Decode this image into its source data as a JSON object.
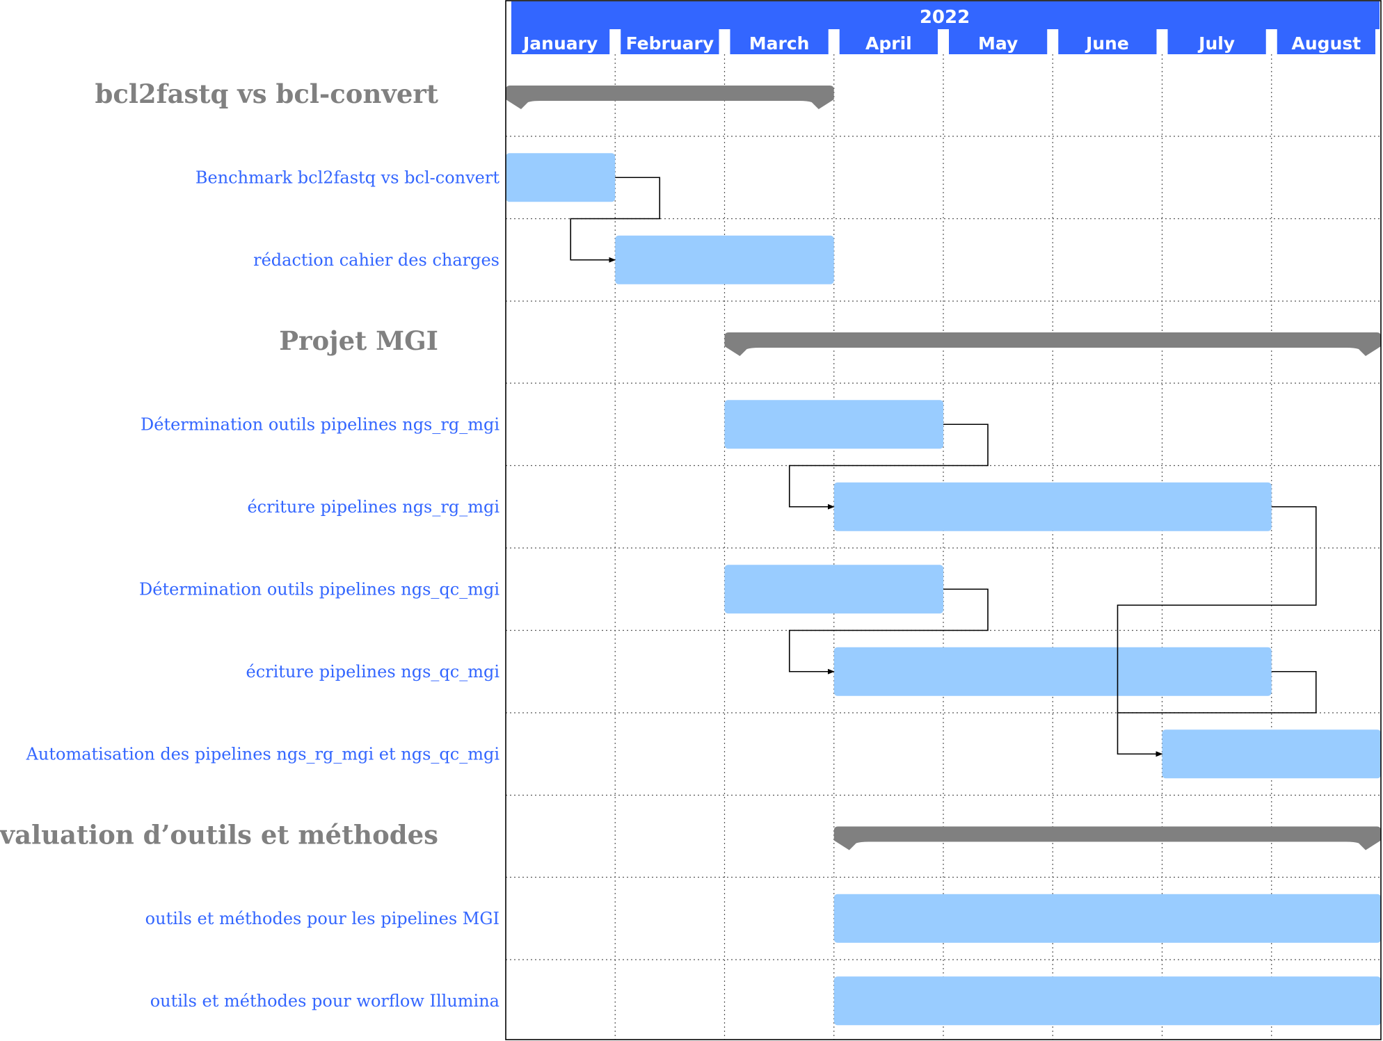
{
  "calendar": {
    "year": "2022",
    "months": [
      "January",
      "February",
      "March",
      "April",
      "May",
      "June",
      "July",
      "August"
    ]
  },
  "colors": {
    "header": "#3366ff",
    "group_bar": "#808080",
    "task_bar": "#99ccff",
    "task_label": "#3366ff",
    "group_label": "#808080"
  },
  "rows": [
    {
      "kind": "group",
      "label": "bcl2fastq vs bcl-convert",
      "start": 0,
      "end": 3
    },
    {
      "kind": "task",
      "label": "Benchmark bcl2fastq vs bcl-convert",
      "start": 0,
      "end": 1
    },
    {
      "kind": "task",
      "label": "rédaction cahier des charges",
      "start": 1,
      "end": 3
    },
    {
      "kind": "group",
      "label": "Projet MGI",
      "start": 2,
      "end": 8
    },
    {
      "kind": "task",
      "label": "Détermination outils pipelines ngs_rg_mgi",
      "start": 2,
      "end": 4
    },
    {
      "kind": "task",
      "label": "écriture pipelines ngs_rg_mgi",
      "start": 3,
      "end": 7
    },
    {
      "kind": "task",
      "label": "Détermination outils pipelines ngs_qc_mgi",
      "start": 2,
      "end": 4
    },
    {
      "kind": "task",
      "label": "écriture pipelines ngs_qc_mgi",
      "start": 3,
      "end": 7
    },
    {
      "kind": "task",
      "label": "Automatisation des pipelines ngs_rg_mgi et ngs_qc_mgi",
      "start": 6,
      "end": 8
    },
    {
      "kind": "group",
      "label": "Évaluation d’outils et méthodes",
      "start": 3,
      "end": 8
    },
    {
      "kind": "task",
      "label": "outils et méthodes pour les pipelines MGI",
      "start": 3,
      "end": 8
    },
    {
      "kind": "task",
      "label": "outils et méthodes pour worflow Illumina",
      "start": 3,
      "end": 8
    }
  ],
  "links": [
    {
      "from": 1,
      "to": 2
    },
    {
      "from": 4,
      "to": 5
    },
    {
      "from": 6,
      "to": 7
    },
    {
      "from": 5,
      "to": 8
    },
    {
      "from": 7,
      "to": 8
    }
  ]
}
